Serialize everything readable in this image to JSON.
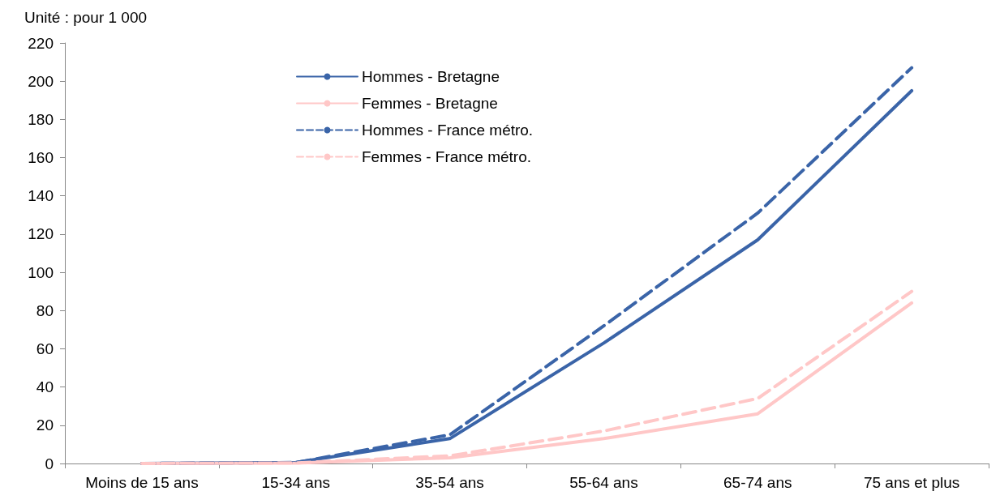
{
  "chart_data": {
    "type": "line",
    "ylabel": "Unité : pour 1 000",
    "categories": [
      "Moins de 15 ans",
      "15-34 ans",
      "35-54 ans",
      "55-64 ans",
      "65-74 ans",
      "75 ans et plus"
    ],
    "series": [
      {
        "name": "Hommes - Bretagne",
        "color": "#3a64a8",
        "line_style": "solid",
        "values": [
          0,
          0.5,
          13,
          63,
          117,
          195
        ]
      },
      {
        "name": "Femmes - Bretagne",
        "color": "#ffc7c7",
        "line_style": "solid",
        "values": [
          0,
          0.2,
          3,
          13,
          26,
          84
        ]
      },
      {
        "name": "Hommes - France métro.",
        "color": "#3a64a8",
        "line_style": "dashed",
        "values": [
          0,
          0.5,
          15,
          72,
          131,
          207
        ]
      },
      {
        "name": "Femmes - France métro.",
        "color": "#ffc7c7",
        "line_style": "dashed",
        "values": [
          0,
          0.3,
          4,
          17,
          34,
          90
        ]
      }
    ],
    "ylim": [
      0,
      220
    ],
    "yticks": [
      0,
      20,
      40,
      60,
      80,
      100,
      120,
      140,
      160,
      180,
      200,
      220
    ],
    "grid": false,
    "legend": "top",
    "marker": "none"
  }
}
